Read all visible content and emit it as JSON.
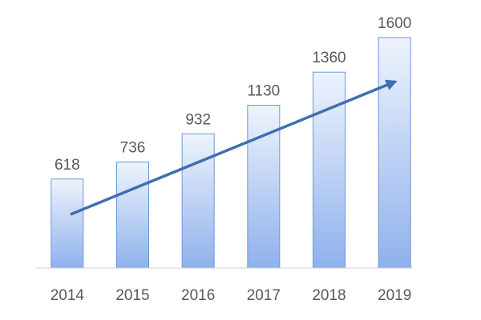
{
  "chart_data": {
    "type": "bar",
    "categories": [
      "2014",
      "2015",
      "2016",
      "2017",
      "2018",
      "2019"
    ],
    "values": [
      618,
      736,
      932,
      1130,
      1360,
      1600
    ],
    "color": "#6f95d9"
  }
}
